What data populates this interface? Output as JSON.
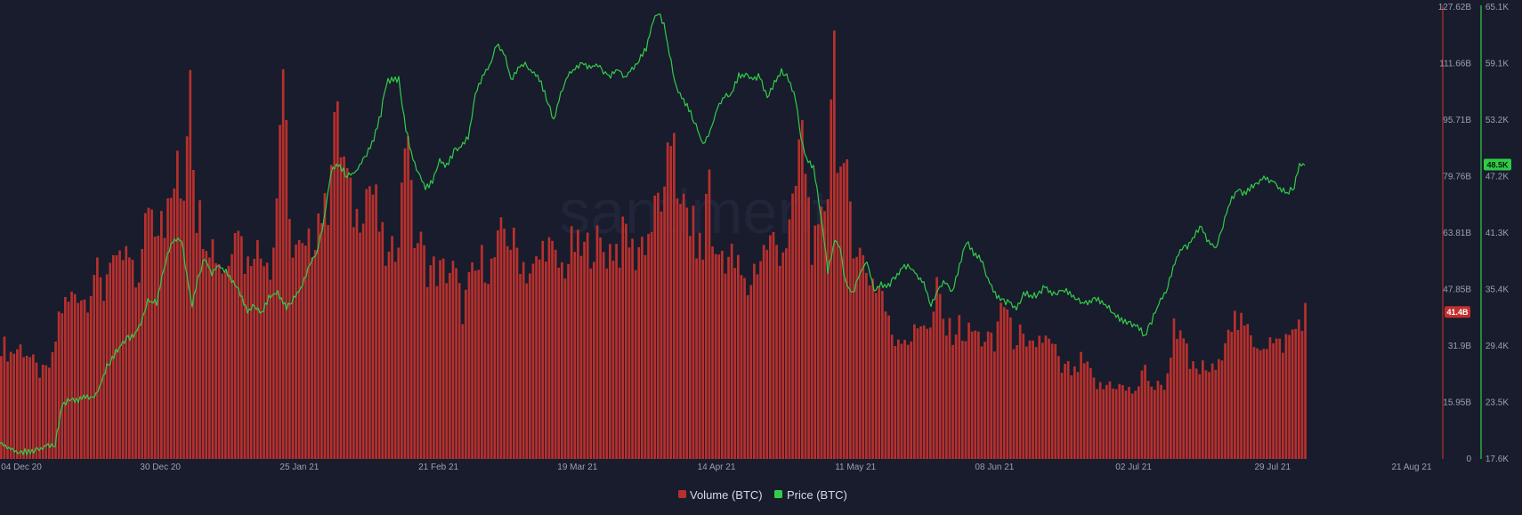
{
  "watermark": "santiment",
  "colors": {
    "background": "#181c2c",
    "volume": "#b8302d",
    "volume_edge": "#d94540",
    "price": "#33cc4a",
    "axis_text": "#9aa1b4",
    "volume_badge_bg": "#c22f2f",
    "price_badge_bg": "#2ecc44"
  },
  "chart_data": {
    "type": "bar+line",
    "x_ticks": [
      "04 Dec 20",
      "30 Dec 20",
      "25 Jan 21",
      "21 Feb 21",
      "19 Mar 21",
      "14 Apr 21",
      "11 May 21",
      "08 Jun 21",
      "02 Jul 21",
      "29 Jul 21",
      "21 Aug 21"
    ],
    "x_range": [
      "2020-12-04",
      "2021-08-21"
    ],
    "volume_axis": {
      "ticks": [
        "0",
        "15.95B",
        "31.9B",
        "47.85B",
        "63.81B",
        "79.76B",
        "95.71B",
        "111.66B",
        "127.62B"
      ],
      "ylim": [
        0,
        127.62
      ],
      "unit": "B"
    },
    "price_axis": {
      "ticks": [
        "17.6K",
        "23.5K",
        "29.4K",
        "35.4K",
        "41.3K",
        "47.2K",
        "53.2K",
        "59.1K",
        "65.1K"
      ],
      "ylim": [
        17.6,
        65.1
      ],
      "unit": "K"
    },
    "current_volume_label": "41.4B",
    "current_volume": 41.4,
    "current_price_label": "48.5K",
    "current_price": 48.5,
    "volume_keypoints": [
      [
        0,
        33
      ],
      [
        10,
        30
      ],
      [
        20,
        32
      ],
      [
        28,
        31
      ],
      [
        38,
        26
      ],
      [
        48,
        24
      ],
      [
        58,
        28
      ],
      [
        66,
        43
      ],
      [
        75,
        44
      ],
      [
        85,
        49
      ],
      [
        95,
        45
      ],
      [
        105,
        54
      ],
      [
        115,
        47
      ],
      [
        123,
        61
      ],
      [
        130,
        52
      ],
      [
        138,
        58
      ],
      [
        145,
        56
      ],
      [
        150,
        48
      ],
      [
        155,
        54
      ],
      [
        160,
        59
      ],
      [
        165,
        76
      ],
      [
        170,
        70
      ],
      [
        175,
        68
      ],
      [
        180,
        74
      ],
      [
        185,
        67
      ],
      [
        192,
        75
      ],
      [
        197,
        83
      ],
      [
        202,
        74
      ],
      [
        207,
        81
      ],
      [
        212,
        123
      ],
      [
        218,
        72
      ],
      [
        225,
        68
      ],
      [
        233,
        64
      ],
      [
        240,
        60
      ],
      [
        248,
        55
      ],
      [
        256,
        55
      ],
      [
        264,
        75
      ],
      [
        272,
        58
      ],
      [
        278,
        55
      ],
      [
        284,
        64
      ],
      [
        290,
        57
      ],
      [
        296,
        61
      ],
      [
        304,
        55
      ],
      [
        310,
        76
      ],
      [
        316,
        118
      ],
      [
        324,
        64
      ],
      [
        333,
        60
      ],
      [
        341,
        57
      ],
      [
        350,
        63
      ],
      [
        358,
        72
      ],
      [
        366,
        68
      ],
      [
        373,
        101
      ],
      [
        380,
        91
      ],
      [
        386,
        84
      ],
      [
        393,
        72
      ],
      [
        400,
        69
      ],
      [
        408,
        76
      ],
      [
        415,
        79
      ],
      [
        421,
        72
      ],
      [
        429,
        60
      ],
      [
        437,
        55
      ],
      [
        444,
        63
      ],
      [
        451,
        77
      ],
      [
        456,
        107
      ],
      [
        462,
        64
      ],
      [
        470,
        62
      ],
      [
        478,
        55
      ],
      [
        486,
        54
      ],
      [
        494,
        53
      ],
      [
        502,
        54
      ],
      [
        510,
        53
      ],
      [
        518,
        42
      ],
      [
        526,
        50
      ],
      [
        534,
        53
      ],
      [
        542,
        57
      ],
      [
        550,
        54
      ],
      [
        558,
        60
      ],
      [
        566,
        66
      ],
      [
        574,
        61
      ],
      [
        582,
        59
      ],
      [
        590,
        54
      ],
      [
        598,
        53
      ],
      [
        605,
        57
      ],
      [
        612,
        63
      ],
      [
        620,
        57
      ],
      [
        628,
        54
      ],
      [
        636,
        56
      ],
      [
        643,
        62
      ],
      [
        650,
        58
      ],
      [
        658,
        60
      ],
      [
        666,
        62
      ],
      [
        674,
        60
      ],
      [
        681,
        59
      ],
      [
        688,
        61
      ],
      [
        695,
        60
      ],
      [
        703,
        66
      ],
      [
        711,
        57
      ],
      [
        718,
        62
      ],
      [
        726,
        63
      ],
      [
        734,
        69
      ],
      [
        740,
        76
      ],
      [
        745,
        71
      ],
      [
        751,
        88
      ],
      [
        756,
        98
      ],
      [
        762,
        67
      ],
      [
        768,
        72
      ],
      [
        775,
        67
      ],
      [
        782,
        62
      ],
      [
        788,
        57
      ],
      [
        795,
        86
      ],
      [
        801,
        54
      ],
      [
        808,
        60
      ],
      [
        815,
        58
      ],
      [
        822,
        57
      ],
      [
        830,
        53
      ],
      [
        838,
        47
      ],
      [
        845,
        54
      ],
      [
        852,
        57
      ],
      [
        860,
        61
      ],
      [
        868,
        62
      ],
      [
        876,
        60
      ],
      [
        884,
        63
      ],
      [
        891,
        71
      ],
      [
        898,
        95
      ],
      [
        904,
        84
      ],
      [
        910,
        62
      ],
      [
        917,
        59
      ],
      [
        923,
        69
      ],
      [
        929,
        80
      ],
      [
        935,
        127
      ],
      [
        940,
        88
      ],
      [
        946,
        76
      ],
      [
        952,
        79
      ],
      [
        958,
        63
      ],
      [
        966,
        58
      ],
      [
        974,
        53
      ],
      [
        982,
        50
      ],
      [
        990,
        48
      ],
      [
        996,
        39
      ],
      [
        1004,
        34
      ],
      [
        1012,
        36
      ],
      [
        1020,
        34
      ],
      [
        1028,
        36
      ],
      [
        1036,
        41
      ],
      [
        1044,
        36
      ],
      [
        1052,
        49
      ],
      [
        1060,
        37
      ],
      [
        1068,
        36
      ],
      [
        1076,
        38
      ],
      [
        1084,
        35
      ],
      [
        1092,
        37
      ],
      [
        1100,
        34
      ],
      [
        1108,
        35
      ],
      [
        1116,
        31
      ],
      [
        1124,
        47
      ],
      [
        1130,
        42
      ],
      [
        1136,
        34
      ],
      [
        1144,
        36
      ],
      [
        1152,
        30
      ],
      [
        1160,
        32
      ],
      [
        1168,
        35
      ],
      [
        1176,
        33
      ],
      [
        1184,
        31
      ],
      [
        1190,
        25
      ],
      [
        1198,
        26
      ],
      [
        1206,
        24
      ],
      [
        1214,
        28
      ],
      [
        1222,
        25
      ],
      [
        1230,
        21
      ],
      [
        1238,
        20
      ],
      [
        1246,
        22
      ],
      [
        1254,
        21
      ],
      [
        1262,
        20
      ],
      [
        1270,
        19
      ],
      [
        1278,
        21
      ],
      [
        1286,
        26
      ],
      [
        1294,
        20
      ],
      [
        1302,
        21
      ],
      [
        1310,
        22
      ],
      [
        1318,
        41
      ],
      [
        1324,
        34
      ],
      [
        1330,
        32
      ],
      [
        1336,
        26
      ],
      [
        1344,
        25
      ],
      [
        1352,
        26
      ],
      [
        1360,
        25
      ],
      [
        1368,
        26
      ],
      [
        1376,
        38
      ],
      [
        1384,
        40
      ],
      [
        1392,
        38
      ],
      [
        1400,
        36
      ],
      [
        1408,
        34
      ],
      [
        1416,
        33
      ],
      [
        1424,
        34
      ],
      [
        1432,
        32
      ],
      [
        1440,
        33
      ],
      [
        1448,
        35
      ],
      [
        1456,
        38
      ],
      [
        1464,
        42
      ]
    ],
    "price_keypoints": [
      [
        0,
        19.2
      ],
      [
        12,
        18.6
      ],
      [
        24,
        18.3
      ],
      [
        36,
        18.4
      ],
      [
        44,
        18.7
      ],
      [
        52,
        19.0
      ],
      [
        62,
        19.2
      ],
      [
        70,
        23.3
      ],
      [
        78,
        23.8
      ],
      [
        86,
        23.7
      ],
      [
        96,
        24.1
      ],
      [
        104,
        24.0
      ],
      [
        112,
        25.1
      ],
      [
        120,
        27.3
      ],
      [
        130,
        28.8
      ],
      [
        140,
        30.1
      ],
      [
        150,
        30.5
      ],
      [
        158,
        31.8
      ],
      [
        166,
        34.2
      ],
      [
        176,
        34.0
      ],
      [
        184,
        37.8
      ],
      [
        192,
        40.2
      ],
      [
        198,
        40.8
      ],
      [
        204,
        40.5
      ],
      [
        210,
        36.9
      ],
      [
        216,
        33.6
      ],
      [
        222,
        36.5
      ],
      [
        230,
        38.7
      ],
      [
        238,
        37.2
      ],
      [
        246,
        37.9
      ],
      [
        254,
        37.3
      ],
      [
        262,
        36.2
      ],
      [
        270,
        34.9
      ],
      [
        278,
        33.1
      ],
      [
        286,
        33.8
      ],
      [
        294,
        32.8
      ],
      [
        302,
        34.5
      ],
      [
        312,
        35.1
      ],
      [
        322,
        33.5
      ],
      [
        332,
        34.6
      ],
      [
        340,
        35.9
      ],
      [
        348,
        38.2
      ],
      [
        356,
        39.2
      ],
      [
        364,
        42.7
      ],
      [
        372,
        47.8
      ],
      [
        380,
        48.6
      ],
      [
        390,
        47.4
      ],
      [
        400,
        47.8
      ],
      [
        410,
        49.4
      ],
      [
        420,
        51.2
      ],
      [
        428,
        53.9
      ],
      [
        434,
        57.1
      ],
      [
        440,
        57.6
      ],
      [
        448,
        57.5
      ],
      [
        456,
        52.3
      ],
      [
        462,
        49.8
      ],
      [
        470,
        47.6
      ],
      [
        478,
        46.0
      ],
      [
        486,
        46.7
      ],
      [
        494,
        49.1
      ],
      [
        502,
        48.4
      ],
      [
        510,
        49.9
      ],
      [
        518,
        50.4
      ],
      [
        526,
        51.4
      ],
      [
        534,
        55.9
      ],
      [
        542,
        57.7
      ],
      [
        550,
        58.9
      ],
      [
        558,
        61.2
      ],
      [
        566,
        60.4
      ],
      [
        574,
        57.4
      ],
      [
        582,
        58.7
      ],
      [
        590,
        59.1
      ],
      [
        598,
        58.3
      ],
      [
        606,
        57.6
      ],
      [
        614,
        55.5
      ],
      [
        622,
        53.2
      ],
      [
        630,
        55.9
      ],
      [
        638,
        57.8
      ],
      [
        646,
        58.6
      ],
      [
        654,
        59.3
      ],
      [
        662,
        58.8
      ],
      [
        670,
        59.0
      ],
      [
        678,
        58.4
      ],
      [
        686,
        57.8
      ],
      [
        694,
        58.6
      ],
      [
        702,
        57.6
      ],
      [
        710,
        58.6
      ],
      [
        718,
        59.6
      ],
      [
        726,
        60.8
      ],
      [
        734,
        63.8
      ],
      [
        740,
        64.4
      ],
      [
        746,
        63.2
      ],
      [
        752,
        60.3
      ],
      [
        760,
        56.7
      ],
      [
        768,
        55.4
      ],
      [
        776,
        53.9
      ],
      [
        784,
        52.1
      ],
      [
        790,
        50.6
      ],
      [
        798,
        51.9
      ],
      [
        806,
        54.6
      ],
      [
        814,
        55.6
      ],
      [
        822,
        56.1
      ],
      [
        830,
        57.9
      ],
      [
        838,
        58.0
      ],
      [
        846,
        57.6
      ],
      [
        854,
        57.9
      ],
      [
        862,
        55.4
      ],
      [
        870,
        57.2
      ],
      [
        878,
        58.5
      ],
      [
        886,
        57.6
      ],
      [
        894,
        55.5
      ],
      [
        900,
        51.2
      ],
      [
        906,
        49.0
      ],
      [
        914,
        48.2
      ],
      [
        922,
        43.5
      ],
      [
        930,
        37.4
      ],
      [
        938,
        40.6
      ],
      [
        944,
        39.8
      ],
      [
        950,
        36.1
      ],
      [
        958,
        34.9
      ],
      [
        966,
        37.1
      ],
      [
        974,
        38.4
      ],
      [
        982,
        35.4
      ],
      [
        990,
        36.0
      ],
      [
        998,
        35.8
      ],
      [
        1006,
        36.6
      ],
      [
        1014,
        37.7
      ],
      [
        1022,
        38.0
      ],
      [
        1030,
        36.9
      ],
      [
        1038,
        36.1
      ],
      [
        1046,
        33.7
      ],
      [
        1054,
        35.5
      ],
      [
        1062,
        36.3
      ],
      [
        1070,
        35.0
      ],
      [
        1078,
        37.9
      ],
      [
        1086,
        40.6
      ],
      [
        1094,
        39.3
      ],
      [
        1102,
        38.6
      ],
      [
        1110,
        36.4
      ],
      [
        1118,
        35.0
      ],
      [
        1126,
        34.1
      ],
      [
        1134,
        34.1
      ],
      [
        1142,
        33.5
      ],
      [
        1150,
        35.0
      ],
      [
        1158,
        34.8
      ],
      [
        1166,
        34.7
      ],
      [
        1174,
        35.8
      ],
      [
        1182,
        34.8
      ],
      [
        1190,
        35.3
      ],
      [
        1198,
        35.3
      ],
      [
        1206,
        34.7
      ],
      [
        1214,
        34.0
      ],
      [
        1222,
        34.1
      ],
      [
        1230,
        34.5
      ],
      [
        1238,
        34.1
      ],
      [
        1246,
        33.6
      ],
      [
        1254,
        32.6
      ],
      [
        1262,
        32.1
      ],
      [
        1270,
        31.9
      ],
      [
        1278,
        31.6
      ],
      [
        1286,
        30.5
      ],
      [
        1294,
        32.1
      ],
      [
        1302,
        33.9
      ],
      [
        1310,
        35.2
      ],
      [
        1318,
        37.6
      ],
      [
        1326,
        39.6
      ],
      [
        1334,
        39.9
      ],
      [
        1342,
        41.1
      ],
      [
        1350,
        42.2
      ],
      [
        1358,
        40.3
      ],
      [
        1366,
        39.8
      ],
      [
        1374,
        42.1
      ],
      [
        1382,
        44.7
      ],
      [
        1390,
        45.9
      ],
      [
        1398,
        45.5
      ],
      [
        1406,
        46.2
      ],
      [
        1414,
        46.8
      ],
      [
        1422,
        47.1
      ],
      [
        1430,
        46.8
      ],
      [
        1438,
        46.0
      ],
      [
        1446,
        45.5
      ],
      [
        1454,
        46.2
      ],
      [
        1460,
        48.5
      ],
      [
        1464,
        48.5
      ]
    ]
  },
  "legend": {
    "volume_label": "Volume (BTC)",
    "price_label": "Price (BTC)"
  }
}
